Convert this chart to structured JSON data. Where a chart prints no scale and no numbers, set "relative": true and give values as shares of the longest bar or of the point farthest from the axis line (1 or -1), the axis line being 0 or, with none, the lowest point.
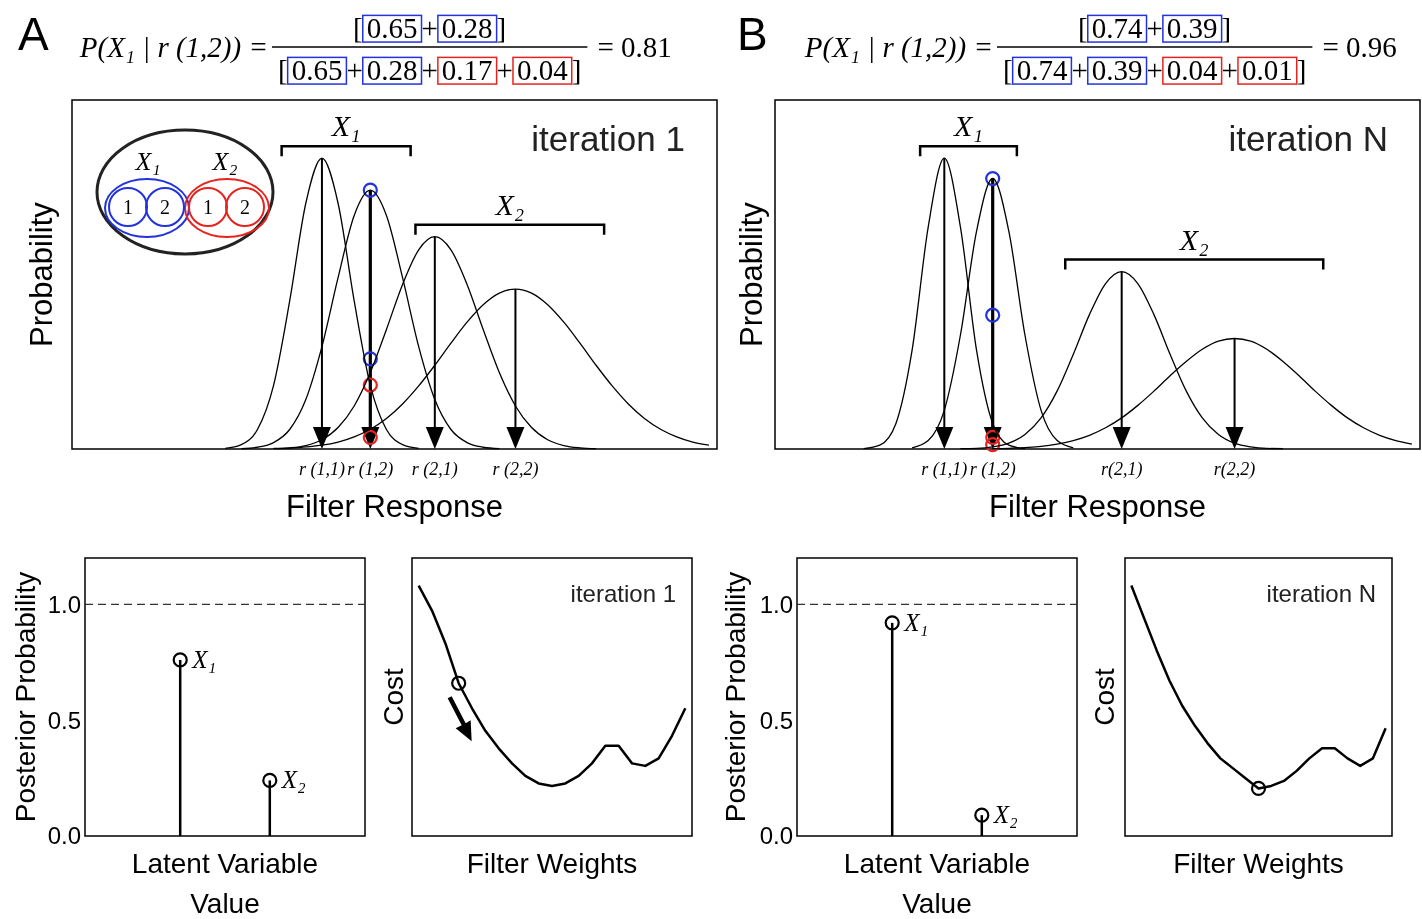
{
  "chart_data": [
    {
      "type": "line",
      "relative": true,
      "categories": [
        null,
        null,
        null,
        null,
        null,
        null,
        null,
        null,
        null,
        null,
        null,
        null,
        null,
        null,
        null,
        "r (1,1)",
        null,
        null,
        "r (1,2)",
        null,
        null,
        null,
        "r (2,1)",
        null,
        null,
        null,
        null,
        "r (2,2)",
        null,
        null,
        null,
        null,
        null,
        null,
        null,
        null,
        null,
        null,
        null,
        null
      ],
      "tick_labels": "x",
      "xlabel": "Filter Response",
      "ylabel": "Probability",
      "annotations": [
        "A",
        "P(X₁ | r (1,2)) =",
        "[0.65+0.28]",
        "[0.65+0.28+0.17+0.04]",
        "= 0.81",
        "iteration 1",
        "X₁",
        "X₂",
        "X₁",
        "X₂",
        "1",
        "2",
        "1",
        "2"
      ],
      "series": [
        {
          "color": "#000000",
          "values": [
            null,
            null,
            null,
            null,
            null,
            null,
            null,
            null,
            null,
            0.002,
            0.015,
            0.067,
            0.219,
            0.509,
            0.845,
            1,
            0.845,
            0.509,
            0.219,
            0.067,
            0.015,
            0.002,
            null,
            null,
            null,
            null,
            null,
            null,
            null,
            null,
            null,
            null,
            null,
            null,
            null,
            null,
            null,
            null,
            null,
            null
          ]
        },
        {
          "color": "#000000",
          "values": [
            null,
            null,
            null,
            null,
            null,
            null,
            null,
            null,
            null,
            null,
            0.001,
            0.006,
            0.022,
            0.067,
            0.17,
            0.352,
            0.589,
            0.803,
            0.89,
            0.803,
            0.589,
            0.352,
            0.17,
            0.067,
            0.022,
            0.006,
            0.001,
            null,
            null,
            null,
            null,
            null,
            null,
            null,
            null,
            null,
            null,
            null,
            null,
            null
          ]
        },
        {
          "color": "#000000",
          "values": [
            null,
            null,
            null,
            null,
            null,
            null,
            null,
            null,
            null,
            null,
            null,
            null,
            0.001,
            0.004,
            0.012,
            0.032,
            0.074,
            0.148,
            0.263,
            0.411,
            0.566,
            0.685,
            0.73,
            0.685,
            0.566,
            0.411,
            0.263,
            0.148,
            0.074,
            0.032,
            0.012,
            0.004,
            0.001,
            null,
            null,
            null,
            null,
            null,
            null,
            null
          ]
        },
        {
          "color": "#000000",
          "values": [
            null,
            null,
            null,
            null,
            null,
            null,
            null,
            null,
            null,
            null,
            null,
            null,
            0.002,
            0.003,
            0.007,
            0.013,
            0.024,
            0.042,
            0.068,
            0.105,
            0.155,
            0.217,
            0.288,
            0.364,
            0.436,
            0.496,
            0.536,
            0.55,
            0.536,
            0.496,
            0.436,
            0.364,
            0.288,
            0.217,
            0.155,
            0.105,
            0.068,
            0.042,
            0.024,
            0.013
          ]
        },
        {
          "type": "scatter",
          "marker": "circle",
          "color": "#2233dd",
          "x": [
            "r (1,2)",
            "r (1,2)"
          ],
          "values": [
            0.89,
            0.31
          ]
        },
        {
          "type": "scatter",
          "marker": "circle",
          "color": "#e52420",
          "x": [
            "r (1,2)",
            "r (1,2)"
          ],
          "values": [
            0.22,
            0.04
          ]
        }
      ]
    },
    {
      "type": "line",
      "relative": true,
      "categories": [
        null,
        null,
        null,
        null,
        null,
        null,
        null,
        null,
        null,
        null,
        "r (1,1)",
        null,
        null,
        "r (1,2)",
        null,
        null,
        null,
        null,
        null,
        null,
        null,
        "r(2,1)",
        null,
        null,
        null,
        null,
        null,
        null,
        "r(2,2)",
        null,
        null,
        null,
        null,
        null,
        null,
        null,
        null,
        null,
        null,
        null
      ],
      "tick_labels": "x",
      "xlabel": "Filter Response",
      "ylabel": "Probability",
      "annotations": [
        "B",
        "P(X₁ | r (1,2)) =",
        "[0.74+0.39]",
        "[0.74+0.39+0.04+0.01]",
        "= 0.96",
        "iteration N",
        "X₁",
        "X₂"
      ],
      "series": [
        {
          "color": "#000000",
          "values": [
            null,
            null,
            null,
            null,
            null,
            0.001,
            0.013,
            0.088,
            0.339,
            0.763,
            1,
            0.763,
            0.339,
            0.088,
            0.013,
            0.001,
            null,
            null,
            null,
            null,
            null,
            null,
            null,
            null,
            null,
            null,
            null,
            null,
            null,
            null,
            null,
            null,
            null,
            null,
            null,
            null,
            null,
            null,
            null,
            null
          ]
        },
        {
          "color": "#000000",
          "values": [
            null,
            null,
            null,
            null,
            null,
            null,
            null,
            null,
            0.004,
            0.029,
            0.133,
            0.392,
            0.749,
            0.93,
            0.749,
            0.392,
            0.133,
            0.029,
            0.004,
            null,
            null,
            null,
            null,
            null,
            null,
            null,
            null,
            null,
            null,
            null,
            null,
            null,
            null,
            null,
            null,
            null,
            null,
            null,
            null,
            null
          ]
        },
        {
          "color": "#000000",
          "values": [
            null,
            null,
            null,
            null,
            null,
            null,
            null,
            null,
            null,
            null,
            null,
            0.001,
            0.002,
            0.007,
            0.02,
            0.05,
            0.107,
            0.2,
            0.326,
            0.462,
            0.569,
            0.61,
            0.569,
            0.462,
            0.326,
            0.2,
            0.107,
            0.05,
            0.02,
            0.007,
            0.002,
            0.001,
            null,
            null,
            null,
            null,
            null,
            null,
            null,
            null
          ]
        },
        {
          "color": "#000000",
          "values": [
            null,
            null,
            null,
            null,
            null,
            null,
            null,
            null,
            null,
            null,
            null,
            null,
            null,
            0.001,
            0.002,
            0.005,
            0.009,
            0.017,
            0.029,
            0.047,
            0.073,
            0.107,
            0.15,
            0.199,
            0.252,
            0.301,
            0.343,
            0.371,
            0.38,
            0.371,
            0.343,
            0.301,
            0.252,
            0.199,
            0.15,
            0.107,
            0.073,
            0.047,
            0.029,
            0.017
          ]
        },
        {
          "type": "scatter",
          "marker": "circle",
          "color": "#2233dd",
          "x": [
            "r (1,2)",
            "r (1,2)"
          ],
          "values": [
            0.93,
            0.46
          ]
        },
        {
          "type": "scatter",
          "marker": "circle",
          "color": "#e52420",
          "x": [
            "r (1,2)",
            "r (1,2)"
          ],
          "values": [
            0.04,
            0.015
          ]
        }
      ]
    },
    {
      "type": "lollipop",
      "categories": [
        "X₁",
        "X₂"
      ],
      "values": [
        0.76,
        0.24
      ],
      "color": "#000000",
      "marker": "circle",
      "ylim": [
        0,
        1.2
      ],
      "yticks": [
        {
          "value": 0,
          "label": "0.0"
        },
        {
          "value": 0.5,
          "label": "0.5"
        },
        {
          "value": 1,
          "label": "1.0"
        }
      ],
      "tick_labels": "y",
      "ylabel": "Posterior Probability",
      "xlabel": "Latent Variable Value",
      "ref_lines": [
        {
          "axis": "y",
          "value": 1,
          "line_style": "dashed"
        }
      ]
    },
    {
      "type": "line",
      "relative": true,
      "categories": [
        null,
        null,
        null,
        null,
        null,
        null,
        null,
        null,
        null,
        null,
        null,
        null,
        null,
        null,
        null,
        null,
        null,
        null,
        null,
        null,
        null
      ],
      "tick_labels": false,
      "xlabel": "Filter Weights",
      "ylabel": "Cost",
      "annotations": [
        "iteration 1"
      ],
      "series": [
        {
          "color": "#000000",
          "values": [
            1,
            0.9,
            0.77,
            0.61,
            0.51,
            0.42,
            0.35,
            0.29,
            0.24,
            0.21,
            0.2,
            0.21,
            0.24,
            0.29,
            0.36,
            0.36,
            0.29,
            0.28,
            0.31,
            0.4,
            0.51
          ]
        }
      ]
    },
    {
      "type": "lollipop",
      "categories": [
        "X₁",
        "X₂"
      ],
      "values": [
        0.92,
        0.09
      ],
      "color": "#000000",
      "marker": "circle",
      "ylim": [
        0,
        1.2
      ],
      "yticks": [
        {
          "value": 0,
          "label": "0.0"
        },
        {
          "value": 0.5,
          "label": "0.5"
        },
        {
          "value": 1,
          "label": "1.0"
        }
      ],
      "tick_labels": "y",
      "ylabel": "Posterior Probability",
      "xlabel": "Latent Variable Value",
      "ref_lines": [
        {
          "axis": "y",
          "value": 1,
          "line_style": "dashed"
        }
      ]
    },
    {
      "type": "line",
      "relative": true,
      "categories": [
        null,
        null,
        null,
        null,
        null,
        null,
        null,
        null,
        null,
        null,
        null,
        null,
        null,
        null,
        null,
        null,
        null,
        null,
        null,
        null,
        null
      ],
      "tick_labels": false,
      "xlabel": "Filter Weights",
      "ylabel": "Cost",
      "annotations": [
        "iteration N"
      ],
      "series": [
        {
          "color": "#000000",
          "values": [
            1,
            0.87,
            0.74,
            0.62,
            0.52,
            0.44,
            0.37,
            0.31,
            0.27,
            0.23,
            0.19,
            0.2,
            0.22,
            0.26,
            0.31,
            0.35,
            0.35,
            0.31,
            0.28,
            0.31,
            0.43
          ]
        }
      ]
    }
  ]
}
